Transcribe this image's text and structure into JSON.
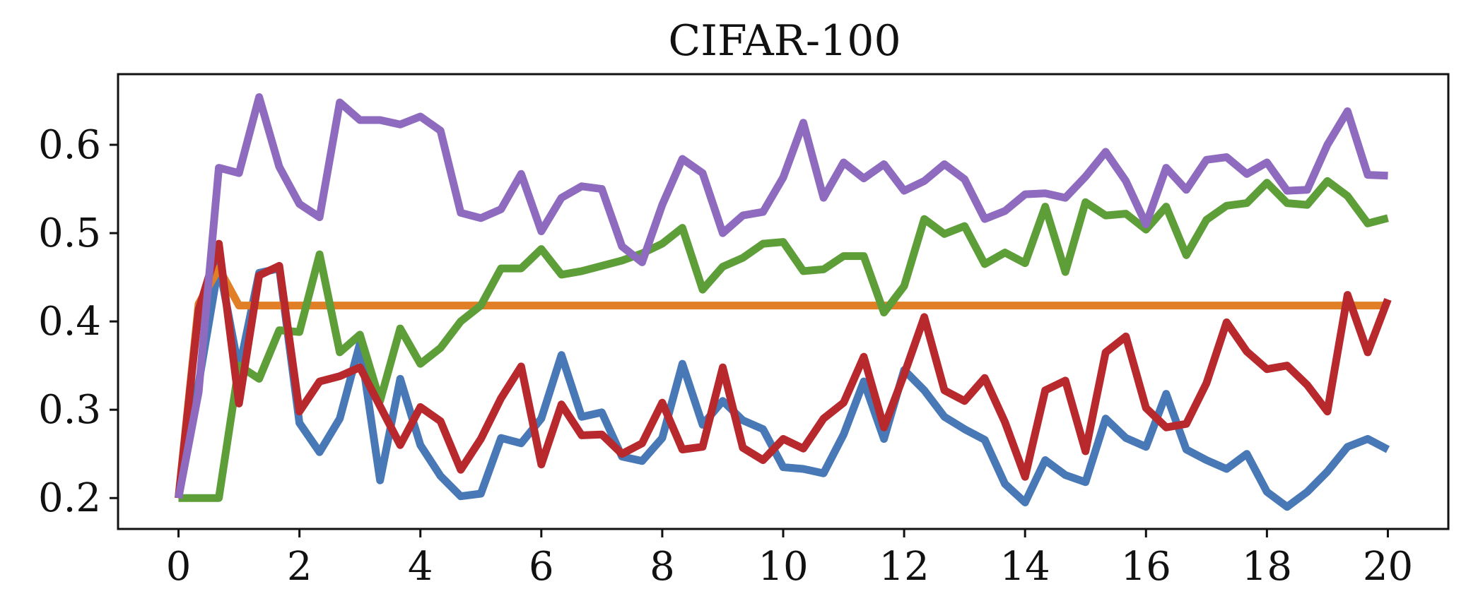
{
  "chart_data": {
    "type": "line",
    "title": "CIFAR-100",
    "xlabel": "",
    "ylabel": "",
    "xlim": [
      -1.0,
      21.0
    ],
    "ylim": [
      0.165,
      0.68
    ],
    "xticks": [
      0,
      2,
      4,
      6,
      8,
      10,
      12,
      14,
      16,
      18,
      20
    ],
    "xtick_labels": [
      "0",
      "2",
      "4",
      "6",
      "8",
      "10",
      "12",
      "14",
      "16",
      "18",
      "20"
    ],
    "yticks": [
      0.2,
      0.3,
      0.4,
      0.5,
      0.6
    ],
    "ytick_labels": [
      "0.2",
      "0.3",
      "0.4",
      "0.5",
      "0.6"
    ],
    "grid": false,
    "legend": "none",
    "x": [
      0,
      0.333,
      0.667,
      1.0,
      1.333,
      1.667,
      2.0,
      2.333,
      2.667,
      3.0,
      3.333,
      3.667,
      4.0,
      4.333,
      4.667,
      5.0,
      5.333,
      5.667,
      6.0,
      6.333,
      6.667,
      7.0,
      7.333,
      7.667,
      8.0,
      8.333,
      8.667,
      9.0,
      9.333,
      9.667,
      10.0,
      10.333,
      10.667,
      11.0,
      11.333,
      11.667,
      12.0,
      12.333,
      12.667,
      13.0,
      13.333,
      13.667,
      14.0,
      14.333,
      14.667,
      15.0,
      15.333,
      15.667,
      16.0,
      16.333,
      16.667,
      17.0,
      17.333,
      17.667,
      18.0,
      18.333,
      18.667,
      19.0,
      19.333,
      19.667,
      20.0
    ],
    "series": [
      {
        "color": "#4878b5",
        "values": [
          0.2,
          0.33,
          0.465,
          0.345,
          0.455,
          0.46,
          0.285,
          0.252,
          0.29,
          0.375,
          0.22,
          0.335,
          0.26,
          0.225,
          0.202,
          0.205,
          0.268,
          0.262,
          0.29,
          0.362,
          0.292,
          0.297,
          0.247,
          0.242,
          0.268,
          0.352,
          0.283,
          0.31,
          0.288,
          0.278,
          0.235,
          0.233,
          0.228,
          0.272,
          0.332,
          0.267,
          0.345,
          0.322,
          0.292,
          0.278,
          0.266,
          0.216,
          0.195,
          0.243,
          0.226,
          0.218,
          0.29,
          0.268,
          0.258,
          0.318,
          0.255,
          0.243,
          0.233,
          0.25,
          0.207,
          0.19,
          0.207,
          0.23,
          0.258,
          0.267,
          0.255
        ]
      },
      {
        "color": "#e07f26",
        "values": [
          0.2,
          0.42,
          0.46,
          0.418,
          0.418,
          0.418,
          0.418,
          0.418,
          0.418,
          0.418,
          0.418,
          0.418,
          0.418,
          0.418,
          0.418,
          0.418,
          0.418,
          0.418,
          0.418,
          0.418,
          0.418,
          0.418,
          0.418,
          0.418,
          0.418,
          0.418,
          0.418,
          0.418,
          0.418,
          0.418,
          0.418,
          0.418,
          0.418,
          0.418,
          0.418,
          0.418,
          0.418,
          0.418,
          0.418,
          0.418,
          0.418,
          0.418,
          0.418,
          0.418,
          0.418,
          0.418,
          0.418,
          0.418,
          0.418,
          0.418,
          0.418,
          0.418,
          0.418,
          0.418,
          0.418,
          0.418,
          0.418,
          0.418,
          0.418,
          0.418,
          0.418
        ]
      },
      {
        "color": "#5e9e39",
        "values": [
          0.2,
          0.2,
          0.2,
          0.35,
          0.335,
          0.39,
          0.388,
          0.476,
          0.365,
          0.385,
          0.31,
          0.392,
          0.352,
          0.37,
          0.4,
          0.418,
          0.46,
          0.46,
          0.482,
          0.453,
          0.457,
          0.463,
          0.469,
          0.477,
          0.488,
          0.506,
          0.436,
          0.462,
          0.472,
          0.488,
          0.49,
          0.457,
          0.459,
          0.474,
          0.474,
          0.41,
          0.44,
          0.516,
          0.499,
          0.508,
          0.465,
          0.478,
          0.466,
          0.53,
          0.456,
          0.535,
          0.52,
          0.522,
          0.504,
          0.53,
          0.475,
          0.515,
          0.531,
          0.534,
          0.557,
          0.534,
          0.532,
          0.559,
          0.542,
          0.511,
          0.517
        ]
      },
      {
        "color": "#b8292e",
        "values": [
          0.2,
          0.413,
          0.488,
          0.307,
          0.452,
          0.463,
          0.298,
          0.332,
          0.338,
          0.348,
          0.304,
          0.26,
          0.303,
          0.287,
          0.232,
          0.267,
          0.313,
          0.349,
          0.238,
          0.306,
          0.271,
          0.272,
          0.25,
          0.262,
          0.308,
          0.255,
          0.258,
          0.348,
          0.257,
          0.243,
          0.267,
          0.256,
          0.29,
          0.308,
          0.36,
          0.28,
          0.34,
          0.405,
          0.322,
          0.31,
          0.336,
          0.286,
          0.224,
          0.322,
          0.333,
          0.253,
          0.365,
          0.383,
          0.302,
          0.28,
          0.284,
          0.33,
          0.399,
          0.366,
          0.346,
          0.35,
          0.328,
          0.298,
          0.43,
          0.365,
          0.425
        ]
      },
      {
        "color": "#8e6bbf",
        "values": [
          0.2,
          0.32,
          0.574,
          0.568,
          0.654,
          0.575,
          0.533,
          0.518,
          0.648,
          0.628,
          0.628,
          0.623,
          0.632,
          0.616,
          0.523,
          0.517,
          0.527,
          0.567,
          0.502,
          0.54,
          0.553,
          0.55,
          0.485,
          0.467,
          0.532,
          0.584,
          0.568,
          0.5,
          0.52,
          0.524,
          0.563,
          0.625,
          0.54,
          0.58,
          0.562,
          0.578,
          0.548,
          0.559,
          0.578,
          0.561,
          0.516,
          0.525,
          0.544,
          0.545,
          0.54,
          0.564,
          0.592,
          0.559,
          0.51,
          0.574,
          0.549,
          0.583,
          0.586,
          0.567,
          0.58,
          0.548,
          0.549,
          0.6,
          0.638,
          0.566,
          0.565
        ]
      }
    ]
  }
}
